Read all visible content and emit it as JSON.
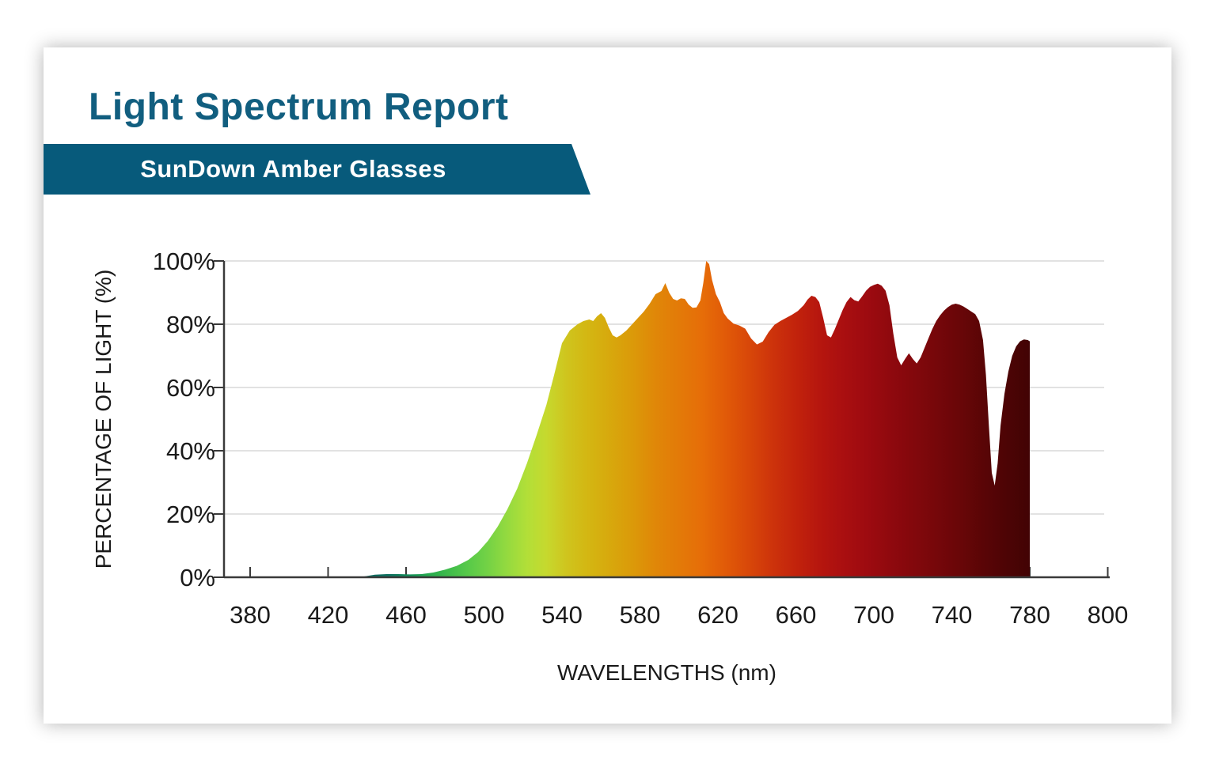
{
  "page": {
    "title": "Light Spectrum Report",
    "subtitle": "SunDown Amber Glasses"
  },
  "colors": {
    "title_teal": "#115e7f",
    "banner_teal": "#075a7b",
    "banner_text": "#ffffff",
    "axis": "#3a3a3a",
    "grid": "#d9d9d9",
    "tick_label": "#1a1a1a",
    "card_bg": "#ffffff"
  },
  "chart_data": {
    "type": "area",
    "title": "",
    "xlabel": "WAVELENGTHS (nm)",
    "ylabel": "PERCENTAGE OF LIGHT (%)",
    "x_tick_labels": [
      "380",
      "420",
      "460",
      "500",
      "540",
      "580",
      "620",
      "660",
      "700",
      "740",
      "780",
      "800"
    ],
    "y_tick_labels": [
      "0%",
      "20%",
      "40%",
      "60%",
      "80%",
      "100%"
    ],
    "xlim": [
      380,
      800
    ],
    "ylim": [
      0,
      100
    ],
    "grid": "horizontal-only",
    "legend": "none",
    "series": [
      {
        "name": "light-transmission-percent",
        "points": [
          [
            380,
            0
          ],
          [
            395,
            0
          ],
          [
            410,
            0
          ],
          [
            425,
            0
          ],
          [
            436,
            0
          ],
          [
            440,
            0.4
          ],
          [
            444,
            0.8
          ],
          [
            450,
            1
          ],
          [
            456,
            1
          ],
          [
            462,
            0.9
          ],
          [
            468,
            1
          ],
          [
            474,
            1.5
          ],
          [
            480,
            2.4
          ],
          [
            486,
            3.6
          ],
          [
            492,
            5.5
          ],
          [
            497,
            8
          ],
          [
            502,
            11.5
          ],
          [
            507,
            16
          ],
          [
            512,
            21.5
          ],
          [
            517,
            28
          ],
          [
            522,
            36
          ],
          [
            527,
            45
          ],
          [
            532,
            54.5
          ],
          [
            536,
            64
          ],
          [
            540,
            74
          ],
          [
            544,
            78
          ],
          [
            548,
            80
          ],
          [
            551,
            81
          ],
          [
            554,
            81.5
          ],
          [
            556,
            81
          ],
          [
            558,
            82.5
          ],
          [
            560,
            83.5
          ],
          [
            562,
            82
          ],
          [
            564,
            79
          ],
          [
            566,
            76.5
          ],
          [
            568,
            75.8
          ],
          [
            570,
            76.5
          ],
          [
            573,
            78
          ],
          [
            576,
            80
          ],
          [
            579,
            82
          ],
          [
            582,
            84
          ],
          [
            585,
            86.5
          ],
          [
            588,
            89.5
          ],
          [
            591,
            90.5
          ],
          [
            593,
            93
          ],
          [
            595,
            90
          ],
          [
            597,
            88
          ],
          [
            599,
            87.5
          ],
          [
            601,
            88.2
          ],
          [
            603,
            88
          ],
          [
            605,
            86.2
          ],
          [
            607,
            85.2
          ],
          [
            609,
            85.3
          ],
          [
            611,
            87.5
          ],
          [
            612.5,
            93
          ],
          [
            614,
            100
          ],
          [
            615.5,
            99
          ],
          [
            617,
            94
          ],
          [
            619,
            89.5
          ],
          [
            621,
            87
          ],
          [
            623,
            83.5
          ],
          [
            625,
            81.8
          ],
          [
            628,
            80.2
          ],
          [
            631,
            79.6
          ],
          [
            634,
            78.6
          ],
          [
            637,
            75.5
          ],
          [
            640,
            73.6
          ],
          [
            643,
            74.5
          ],
          [
            646,
            77.5
          ],
          [
            649,
            79.8
          ],
          [
            652,
            81
          ],
          [
            655,
            82
          ],
          [
            658,
            83
          ],
          [
            661,
            84.2
          ],
          [
            664,
            86
          ],
          [
            666,
            87.8
          ],
          [
            668,
            89
          ],
          [
            670,
            88.6
          ],
          [
            672,
            87
          ],
          [
            674,
            82
          ],
          [
            676,
            76.5
          ],
          [
            678,
            75.8
          ],
          [
            680,
            78.5
          ],
          [
            682,
            81.5
          ],
          [
            684,
            84.5
          ],
          [
            686,
            87
          ],
          [
            688,
            88.6
          ],
          [
            690,
            87.6
          ],
          [
            692,
            87.2
          ],
          [
            694,
            88.8
          ],
          [
            696,
            90.6
          ],
          [
            698,
            91.8
          ],
          [
            700,
            92.4
          ],
          [
            702,
            92.8
          ],
          [
            704,
            92.2
          ],
          [
            706,
            90.6
          ],
          [
            708,
            86
          ],
          [
            710,
            77
          ],
          [
            712,
            69.5
          ],
          [
            714,
            67
          ],
          [
            716,
            69
          ],
          [
            718,
            70.8
          ],
          [
            720,
            69
          ],
          [
            722,
            67.6
          ],
          [
            724,
            69.5
          ],
          [
            726,
            72.5
          ],
          [
            728,
            75.5
          ],
          [
            730,
            78.5
          ],
          [
            732,
            81
          ],
          [
            734,
            82.8
          ],
          [
            736,
            84.3
          ],
          [
            738,
            85.4
          ],
          [
            740,
            86.2
          ],
          [
            742,
            86.5
          ],
          [
            744,
            86.2
          ],
          [
            746,
            85.6
          ],
          [
            748,
            84.8
          ],
          [
            750,
            84
          ],
          [
            752,
            83.2
          ],
          [
            754,
            81
          ],
          [
            756,
            75
          ],
          [
            757.5,
            64
          ],
          [
            759,
            48
          ],
          [
            760.5,
            33
          ],
          [
            762,
            29
          ],
          [
            763.5,
            36
          ],
          [
            765,
            48
          ],
          [
            767,
            58
          ],
          [
            769,
            65
          ],
          [
            771,
            70
          ],
          [
            773,
            73
          ],
          [
            775,
            74.6
          ],
          [
            777,
            75.2
          ],
          [
            779,
            75
          ],
          [
            780,
            74.6
          ]
        ]
      }
    ],
    "gradient_stops": [
      {
        "nm": 440,
        "color": "#0d6a60"
      },
      {
        "nm": 452,
        "color": "#0e7260"
      },
      {
        "nm": 462,
        "color": "#129058"
      },
      {
        "nm": 472,
        "color": "#27ab4e"
      },
      {
        "nm": 482,
        "color": "#3fbc4b"
      },
      {
        "nm": 492,
        "color": "#58ca49"
      },
      {
        "nm": 502,
        "color": "#74d245"
      },
      {
        "nm": 512,
        "color": "#95da3f"
      },
      {
        "nm": 522,
        "color": "#b2df38"
      },
      {
        "nm": 532,
        "color": "#c6d92e"
      },
      {
        "nm": 542,
        "color": "#cfc51e"
      },
      {
        "nm": 552,
        "color": "#d3b813"
      },
      {
        "nm": 564,
        "color": "#d7a90d"
      },
      {
        "nm": 576,
        "color": "#db9a09"
      },
      {
        "nm": 588,
        "color": "#e08708"
      },
      {
        "nm": 600,
        "color": "#e37a08"
      },
      {
        "nm": 612,
        "color": "#e66d08"
      },
      {
        "nm": 624,
        "color": "#e15a08"
      },
      {
        "nm": 636,
        "color": "#d84709"
      },
      {
        "nm": 648,
        "color": "#cd330b"
      },
      {
        "nm": 660,
        "color": "#c2230c"
      },
      {
        "nm": 672,
        "color": "#b6160e"
      },
      {
        "nm": 684,
        "color": "#aa0f10"
      },
      {
        "nm": 696,
        "color": "#9e0b10"
      },
      {
        "nm": 708,
        "color": "#90090e"
      },
      {
        "nm": 720,
        "color": "#83080c"
      },
      {
        "nm": 732,
        "color": "#76070a"
      },
      {
        "nm": 744,
        "color": "#690608"
      },
      {
        "nm": 756,
        "color": "#5a0506"
      },
      {
        "nm": 768,
        "color": "#4d0405"
      },
      {
        "nm": 780,
        "color": "#420304"
      }
    ]
  }
}
